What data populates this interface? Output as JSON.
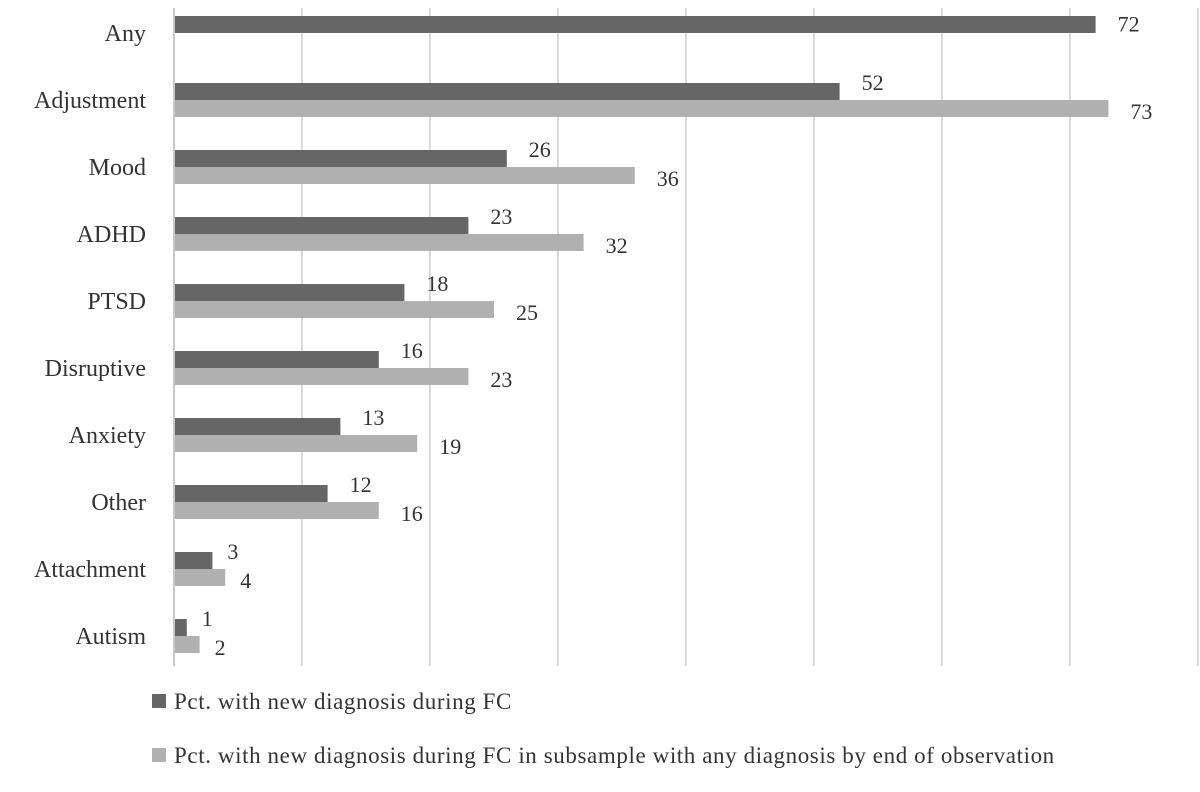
{
  "chart_data": {
    "type": "bar",
    "orientation": "horizontal",
    "categories": [
      "Any",
      "Adjustment",
      "Mood",
      "ADHD",
      "PTSD",
      "Disruptive",
      "Anxiety",
      "Other",
      "Attachment",
      "Autism"
    ],
    "series": [
      {
        "name": "Pct. with new diagnosis during FC",
        "color": "#666666",
        "values": [
          72,
          52,
          26,
          23,
          18,
          16,
          13,
          12,
          3,
          1
        ]
      },
      {
        "name": "Pct. with new diagnosis during FC in subsample with any diagnosis by end of observation",
        "color": "#b0b0b0",
        "values": [
          null,
          73,
          36,
          32,
          25,
          23,
          19,
          16,
          4,
          2
        ]
      }
    ],
    "xlim": [
      0,
      80
    ],
    "grid": true,
    "legend": "bottom"
  }
}
